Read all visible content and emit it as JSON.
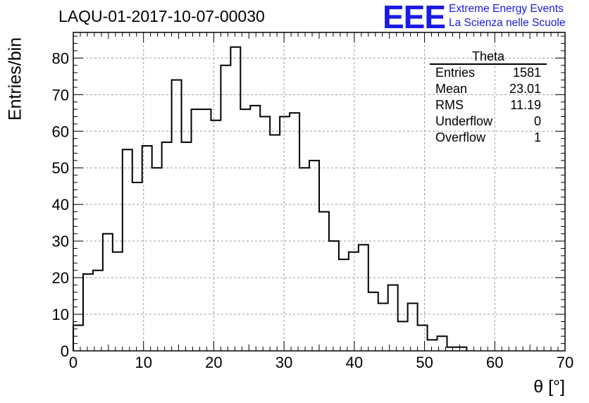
{
  "header": {
    "title": "LAQU-01-2017-10-07-00030",
    "logo_text": "EEE",
    "brand_line1": "Extreme Energy Events",
    "brand_line2": "La Scienza nelle Scuole",
    "logo_color": "#1a1ae6"
  },
  "stats_box": {
    "title": "Theta",
    "rows": [
      {
        "label": "Entries",
        "value": "1581"
      },
      {
        "label": "Mean",
        "value": "23.01"
      },
      {
        "label": "RMS",
        "value": "11.19"
      },
      {
        "label": "Underflow",
        "value": "0"
      },
      {
        "label": "Overflow",
        "value": "1"
      }
    ]
  },
  "chart_data": {
    "type": "bar",
    "histogram": true,
    "xlabel": "θ [°]",
    "ylabel": "Entries/bin",
    "xlim": [
      0,
      70
    ],
    "ylim": [
      0,
      87
    ],
    "grid": true,
    "bin_width": 1.4,
    "x_ticks": [
      0,
      10,
      20,
      30,
      40,
      50,
      60,
      70
    ],
    "y_ticks": [
      0,
      10,
      20,
      30,
      40,
      50,
      60,
      70,
      80
    ],
    "bin_edges": [
      0,
      1.4,
      2.8,
      4.2,
      5.6,
      7.0,
      8.4,
      9.8,
      11.2,
      12.6,
      14.0,
      15.4,
      16.8,
      18.2,
      19.6,
      21.0,
      22.4,
      23.8,
      25.2,
      26.6,
      28.0,
      29.4,
      30.8,
      32.2,
      33.6,
      35.0,
      36.4,
      37.8,
      39.2,
      40.6,
      42.0,
      43.4,
      44.8,
      46.2,
      47.6,
      49.0,
      50.4,
      51.8,
      53.2,
      54.6,
      56.0
    ],
    "values": [
      7,
      21,
      22,
      32,
      27,
      55,
      46,
      56,
      50,
      57,
      74,
      57,
      66,
      66,
      63,
      78,
      83,
      66,
      67,
      64,
      59,
      64,
      65,
      50,
      52,
      38,
      30,
      25,
      27,
      29,
      16,
      13,
      18,
      8,
      13,
      7,
      3,
      4,
      1,
      1
    ]
  }
}
